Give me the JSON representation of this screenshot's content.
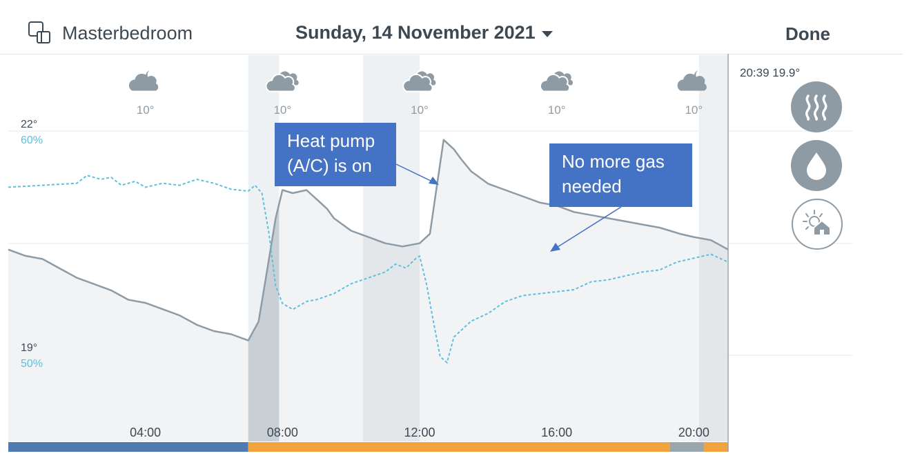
{
  "header": {
    "room_name": "Masterbedroom",
    "room_icon": "room-devices-icon",
    "date": "Sunday, 14 November 2021",
    "done_label": "Done"
  },
  "status": {
    "current_time": "20:39",
    "current_temp": "19.9°"
  },
  "mode_buttons": [
    {
      "name": "heat-waves-icon",
      "label": "heating"
    },
    {
      "name": "water-drop-icon",
      "label": "humidity"
    },
    {
      "name": "sun-house-icon",
      "label": "outdoor"
    }
  ],
  "annotations": [
    {
      "text": "Heat pump (A/C) is on"
    },
    {
      "text": "No more gas needed"
    }
  ],
  "colors": {
    "temperature_line": "#8e9ba5",
    "humidity_line": "#5bc0de",
    "callout": "#4472c4",
    "heating_band": "#9aa6ae",
    "bar_night": "#4f7bb0",
    "bar_day": "#f0a33e"
  },
  "chart_data": {
    "type": "line",
    "x_unit": "hour",
    "x_range": [
      0,
      21
    ],
    "x_ticks": [
      "04:00",
      "08:00",
      "12:00",
      "16:00",
      "20:00"
    ],
    "x_tick_values": [
      4,
      8,
      12,
      16,
      20
    ],
    "left_axis_temp_labels": [
      "22°",
      "19°"
    ],
    "left_axis_humidity_labels": [
      "60%",
      "50%"
    ],
    "temp_range": [
      16.5,
      22
    ],
    "humidity_range": [
      42.5,
      60
    ],
    "weather": [
      {
        "hour": 4,
        "icon": "cloud-moon-icon",
        "temp": "10°"
      },
      {
        "hour": 8,
        "icon": "clouds-icon",
        "temp": "10°"
      },
      {
        "hour": 12,
        "icon": "clouds-icon",
        "temp": "10°"
      },
      {
        "hour": 16,
        "icon": "clouds-icon",
        "temp": "10°"
      },
      {
        "hour": 20,
        "icon": "cloud-moon-icon",
        "temp": "10°"
      }
    ],
    "series": [
      {
        "values": [
          [
            0,
            20.0
          ],
          [
            0.5,
            19.9
          ],
          [
            1.0,
            19.85
          ],
          [
            1.5,
            19.7
          ],
          [
            2.0,
            19.55
          ],
          [
            2.5,
            19.45
          ],
          [
            3.0,
            19.35
          ],
          [
            3.5,
            19.2
          ],
          [
            4.0,
            19.15
          ],
          [
            4.5,
            19.05
          ],
          [
            5.0,
            18.95
          ],
          [
            5.5,
            18.8
          ],
          [
            6.0,
            18.7
          ],
          [
            6.5,
            18.65
          ],
          [
            7.0,
            18.55
          ],
          [
            7.3,
            18.85
          ],
          [
            7.5,
            19.5
          ],
          [
            7.8,
            20.5
          ],
          [
            8.0,
            20.95
          ],
          [
            8.3,
            20.9
          ],
          [
            8.7,
            20.95
          ],
          [
            9.0,
            20.8
          ],
          [
            9.3,
            20.65
          ],
          [
            9.5,
            20.5
          ],
          [
            10.0,
            20.3
          ],
          [
            10.5,
            20.2
          ],
          [
            11.0,
            20.1
          ],
          [
            11.5,
            20.05
          ],
          [
            12.0,
            20.1
          ],
          [
            12.3,
            20.25
          ],
          [
            12.5,
            21.0
          ],
          [
            12.7,
            21.75
          ],
          [
            13.0,
            21.6
          ],
          [
            13.2,
            21.45
          ],
          [
            13.5,
            21.25
          ],
          [
            14.0,
            21.05
          ],
          [
            14.5,
            20.95
          ],
          [
            15.0,
            20.85
          ],
          [
            15.5,
            20.75
          ],
          [
            16.0,
            20.7
          ],
          [
            16.5,
            20.6
          ],
          [
            17.0,
            20.55
          ],
          [
            17.5,
            20.5
          ],
          [
            18.0,
            20.45
          ],
          [
            18.5,
            20.4
          ],
          [
            19.0,
            20.35
          ],
          [
            19.3,
            20.3
          ],
          [
            19.6,
            20.25
          ],
          [
            20.0,
            20.2
          ],
          [
            20.5,
            20.15
          ],
          [
            21.0,
            20.0
          ]
        ]
      },
      {
        "values": [
          [
            0,
            56.8
          ],
          [
            0.5,
            56.85
          ],
          [
            1.0,
            56.9
          ],
          [
            1.5,
            56.95
          ],
          [
            2.0,
            57.0
          ],
          [
            2.3,
            57.4
          ],
          [
            2.7,
            57.2
          ],
          [
            3.0,
            57.3
          ],
          [
            3.3,
            56.9
          ],
          [
            3.7,
            57.1
          ],
          [
            4.0,
            56.8
          ],
          [
            4.5,
            57.0
          ],
          [
            5.0,
            56.9
          ],
          [
            5.5,
            57.2
          ],
          [
            6.0,
            57.0
          ],
          [
            6.5,
            56.7
          ],
          [
            7.0,
            56.6
          ],
          [
            7.2,
            56.9
          ],
          [
            7.4,
            56.5
          ],
          [
            7.6,
            54.5
          ],
          [
            7.8,
            51.8
          ],
          [
            8.0,
            50.9
          ],
          [
            8.3,
            50.6
          ],
          [
            8.7,
            51.0
          ],
          [
            9.0,
            51.1
          ],
          [
            9.5,
            51.4
          ],
          [
            10.0,
            51.9
          ],
          [
            10.5,
            52.2
          ],
          [
            11.0,
            52.5
          ],
          [
            11.3,
            52.9
          ],
          [
            11.6,
            52.7
          ],
          [
            11.9,
            53.2
          ],
          [
            12.0,
            53.3
          ],
          [
            12.2,
            51.9
          ],
          [
            12.4,
            50.0
          ],
          [
            12.6,
            48.2
          ],
          [
            12.8,
            47.9
          ],
          [
            13.0,
            49.2
          ],
          [
            13.5,
            50.0
          ],
          [
            14.0,
            50.4
          ],
          [
            14.5,
            51.0
          ],
          [
            15.0,
            51.3
          ],
          [
            15.5,
            51.4
          ],
          [
            16.0,
            51.5
          ],
          [
            16.5,
            51.6
          ],
          [
            17.0,
            52.0
          ],
          [
            17.5,
            52.1
          ],
          [
            18.0,
            52.3
          ],
          [
            18.5,
            52.5
          ],
          [
            19.0,
            52.6
          ],
          [
            19.5,
            53.0
          ],
          [
            20.0,
            53.2
          ],
          [
            20.5,
            53.4
          ],
          [
            21.0,
            53.0
          ]
        ]
      }
    ],
    "heating_bands": [
      [
        7.0,
        7.9
      ],
      [
        10.35,
        12.0
      ],
      [
        20.15,
        21.0
      ]
    ],
    "bottom_bar": [
      {
        "from": 0,
        "to": 7.0,
        "color": "#4f7bb0"
      },
      {
        "from": 7.0,
        "to": 19.3,
        "color": "#f0a33e"
      },
      {
        "from": 19.3,
        "to": 20.3,
        "color": "#9aa6ae"
      },
      {
        "from": 20.3,
        "to": 21.0,
        "color": "#f0a33e"
      }
    ]
  }
}
